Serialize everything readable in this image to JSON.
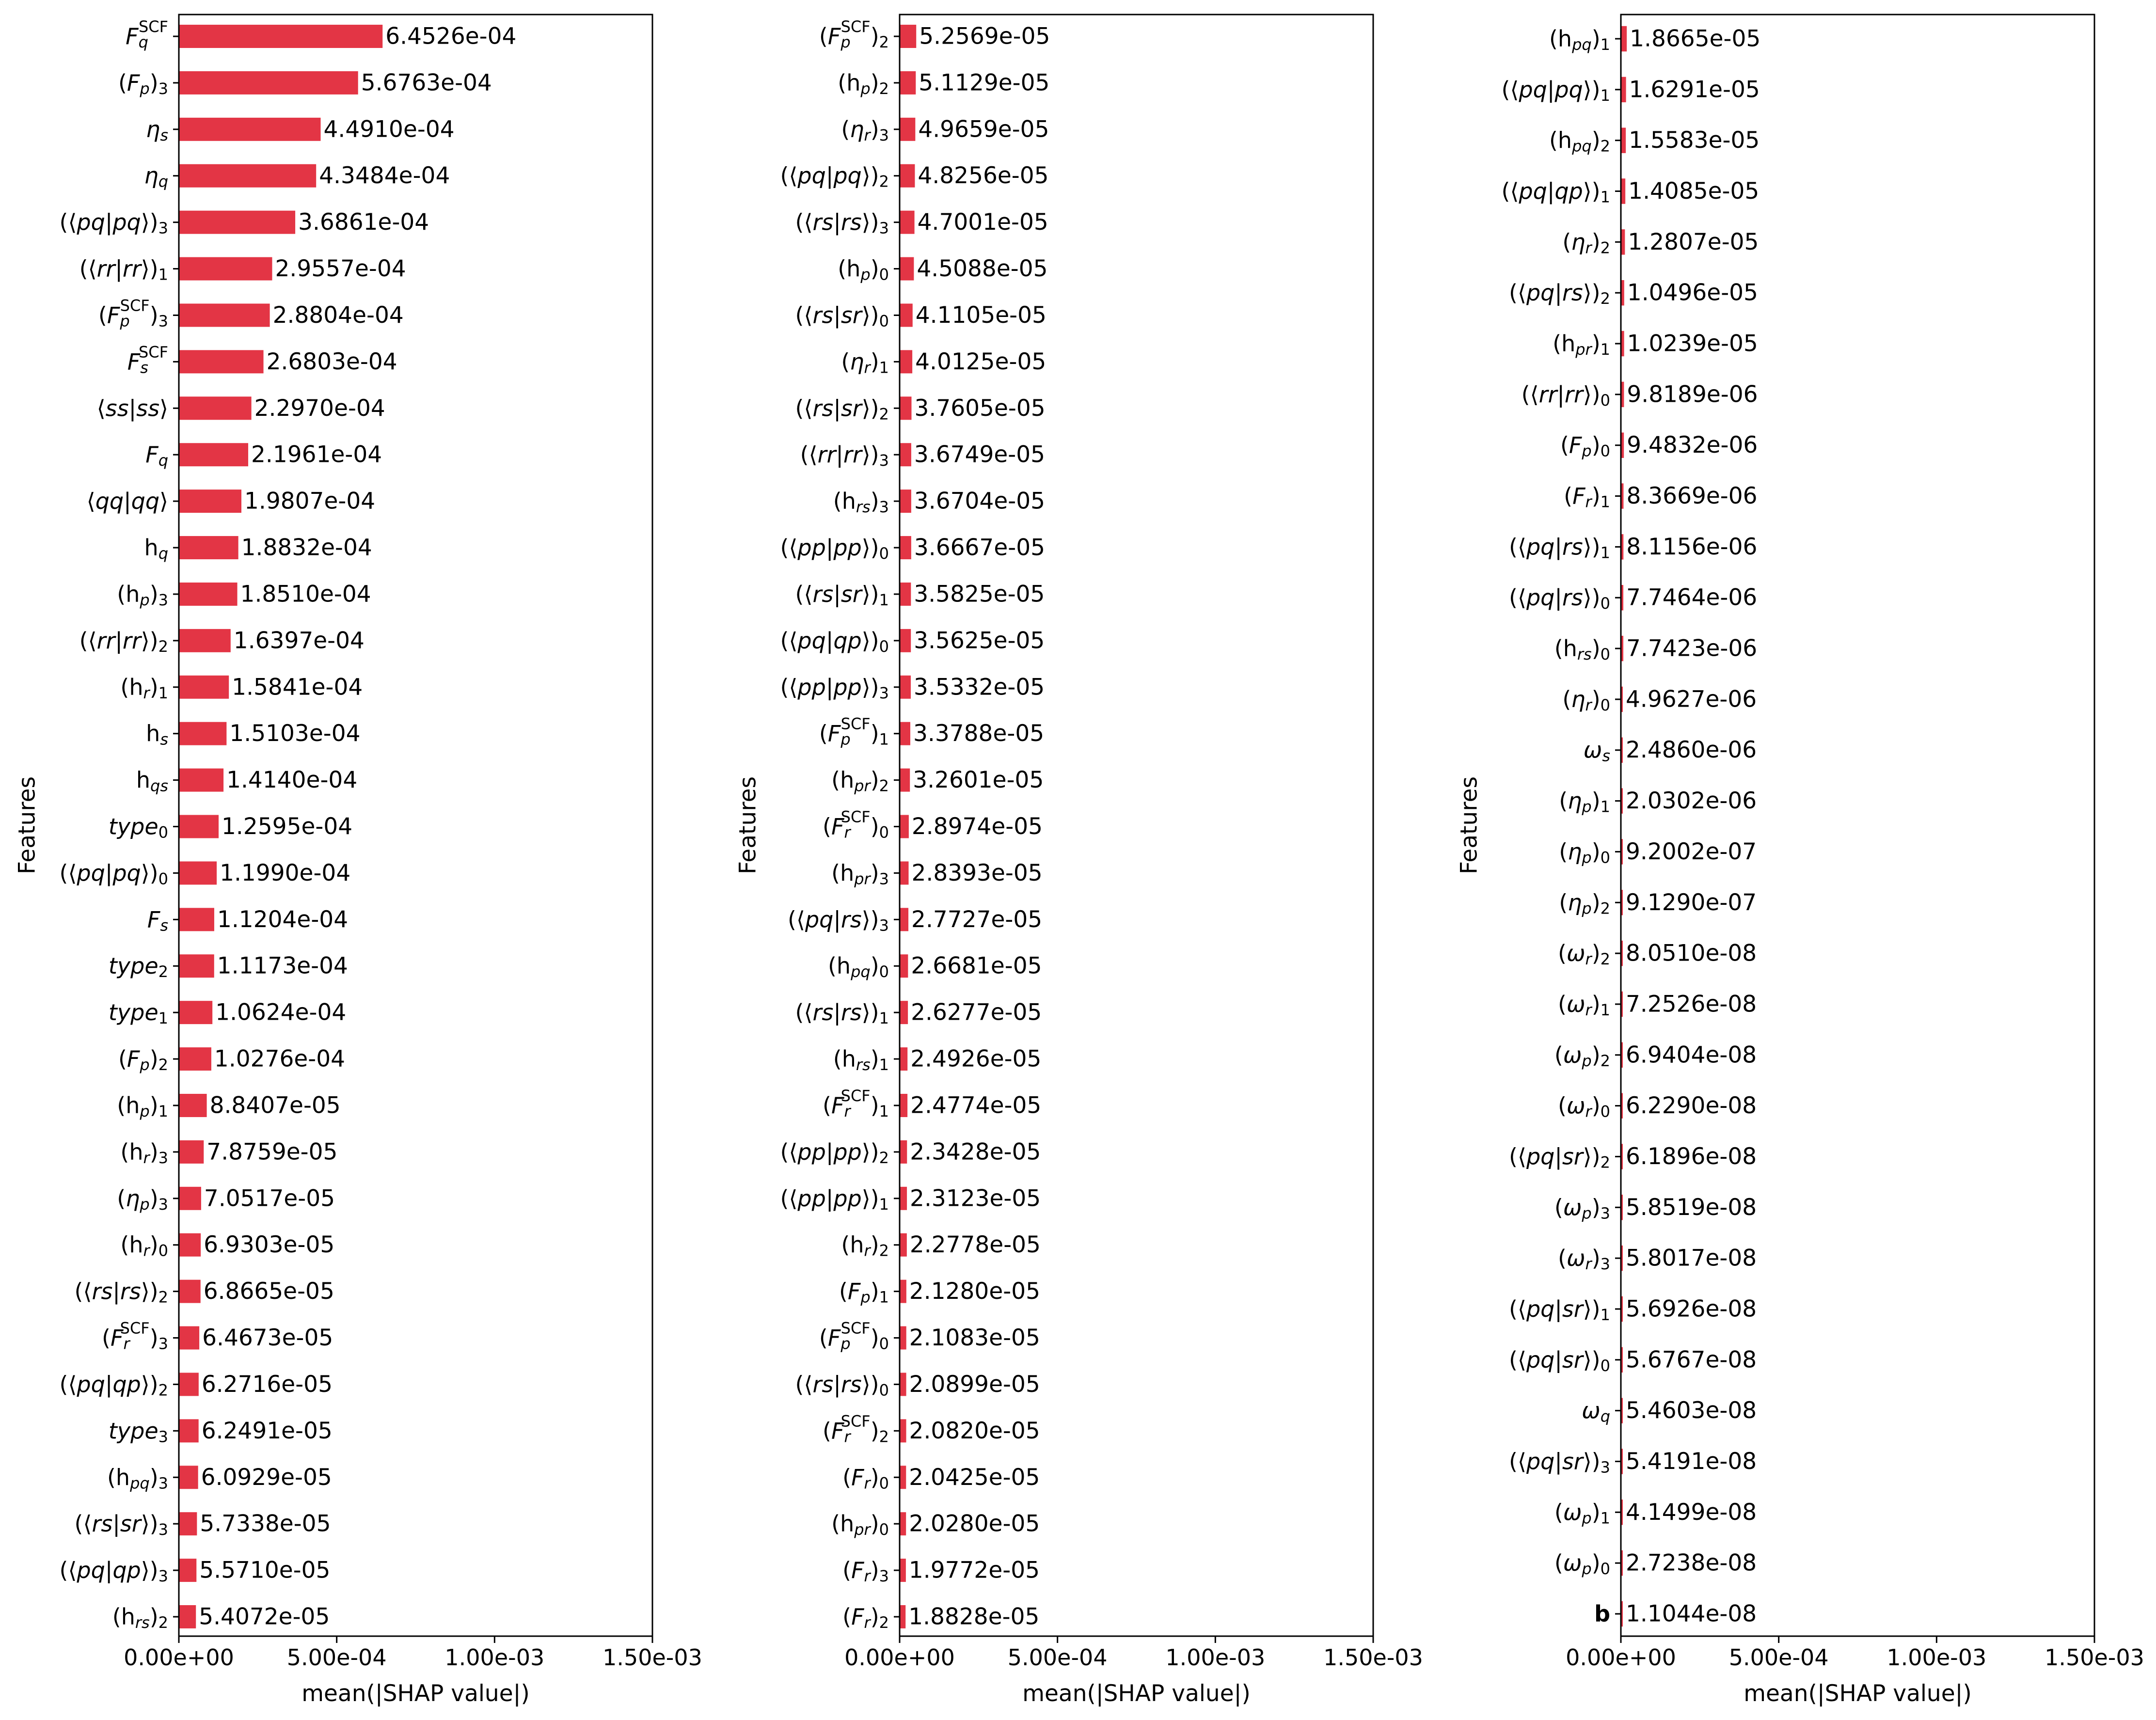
{
  "colors": {
    "bar": "#e33545",
    "axis": "#000000",
    "background": "#ffffff"
  },
  "chart_data": [
    {
      "type": "bar",
      "orientation": "horizontal",
      "xlabel": "mean(|SHAP value|)",
      "ylabel": "Features",
      "xlim": [
        0,
        0.0015
      ],
      "x_ticks": [
        "0.00e+00",
        "5.00e-04",
        "1.00e-03",
        "1.50e-03"
      ],
      "categories": [
        "F_q^SCF",
        "(F_p)_3",
        "η_s",
        "η_q",
        "(⟨pq|pq⟩)_3",
        "(⟨rr|rr⟩)_1",
        "(F_p^SCF)_3",
        "F_s^SCF",
        "⟨ss|ss⟩",
        "F_q",
        "⟨qq|qq⟩",
        "h_q",
        "(h_p)_3",
        "(⟨rr|rr⟩)_2",
        "(h_r)_1",
        "h_s",
        "h_qs",
        "type_0",
        "(⟨pq|pq⟩)_0",
        "F_s",
        "type_2",
        "type_1",
        "(F_p)_2",
        "(h_p)_1",
        "(h_r)_3",
        "(η_p)_3",
        "(h_r)_0",
        "(⟨rs|rs⟩)_2",
        "(F_r^SCF)_3",
        "(⟨pq|qp⟩)_2",
        "type_3",
        "(h_pq)_3",
        "(⟨rs|sr⟩)_3",
        "(⟨pq|qp⟩)_3",
        "(h_rs)_2"
      ],
      "values": [
        0.00064526,
        0.00056763,
        0.0004491,
        0.00043484,
        0.00036861,
        0.00029557,
        0.00028804,
        0.00026803,
        0.0002297,
        0.00021961,
        0.00019807,
        0.00018832,
        0.0001851,
        0.00016397,
        0.00015841,
        0.00015103,
        0.0001414,
        0.00012595,
        0.0001199,
        0.00011204,
        0.00011173,
        0.00010624,
        0.00010276,
        8.8407e-05,
        7.8759e-05,
        7.0517e-05,
        6.9303e-05,
        6.8665e-05,
        6.4673e-05,
        6.2716e-05,
        6.2491e-05,
        6.0929e-05,
        5.7338e-05,
        5.571e-05,
        5.4072e-05
      ],
      "value_labels": [
        "6.4526e-04",
        "5.6763e-04",
        "4.4910e-04",
        "4.3484e-04",
        "3.6861e-04",
        "2.9557e-04",
        "2.8804e-04",
        "2.6803e-04",
        "2.2970e-04",
        "2.1961e-04",
        "1.9807e-04",
        "1.8832e-04",
        "1.8510e-04",
        "1.6397e-04",
        "1.5841e-04",
        "1.5103e-04",
        "1.4140e-04",
        "1.2595e-04",
        "1.1990e-04",
        "1.1204e-04",
        "1.1173e-04",
        "1.0624e-04",
        "1.0276e-04",
        "8.8407e-05",
        "7.8759e-05",
        "7.0517e-05",
        "6.9303e-05",
        "6.8665e-05",
        "6.4673e-05",
        "6.2716e-05",
        "6.2491e-05",
        "6.0929e-05",
        "5.7338e-05",
        "5.5710e-05",
        "5.4072e-05"
      ]
    },
    {
      "type": "bar",
      "orientation": "horizontal",
      "xlabel": "mean(|SHAP value|)",
      "ylabel": "Features",
      "xlim": [
        0,
        0.0015
      ],
      "x_ticks": [
        "0.00e+00",
        "5.00e-04",
        "1.00e-03",
        "1.50e-03"
      ],
      "categories": [
        "(F_p^SCF)_2",
        "(h_p)_2",
        "(η_r)_3",
        "(⟨pq|pq⟩)_2",
        "(⟨rs|rs⟩)_3",
        "(h_p)_0",
        "(⟨rs|sr⟩)_0",
        "(η_r)_1",
        "(⟨rs|sr⟩)_2",
        "(⟨rr|rr⟩)_3",
        "(h_rs)_3",
        "(⟨pp|pp⟩)_0",
        "(⟨rs|sr⟩)_1",
        "(⟨pq|qp⟩)_0",
        "(⟨pp|pp⟩)_3",
        "(F_p^SCF)_1",
        "(h_pr)_2",
        "(F_r^SCF)_0",
        "(h_pr)_3",
        "(⟨pq|rs⟩)_3",
        "(h_pq)_0",
        "(⟨rs|rs⟩)_1",
        "(h_rs)_1",
        "(F_r^SCF)_1",
        "(⟨pp|pp⟩)_2",
        "(⟨pp|pp⟩)_1",
        "(h_r)_2",
        "(F_p)_1",
        "(F_p^SCF)_0",
        "(⟨rs|rs⟩)_0",
        "(F_r^SCF)_2",
        "(F_r)_0",
        "(h_pr)_0",
        "(F_r)_3",
        "(F_r)_2"
      ],
      "values": [
        5.2569e-05,
        5.1129e-05,
        4.9659e-05,
        4.8256e-05,
        4.7001e-05,
        4.5088e-05,
        4.1105e-05,
        4.0125e-05,
        3.7605e-05,
        3.6749e-05,
        3.6704e-05,
        3.6667e-05,
        3.5825e-05,
        3.5625e-05,
        3.5332e-05,
        3.3788e-05,
        3.2601e-05,
        2.8974e-05,
        2.8393e-05,
        2.7727e-05,
        2.6681e-05,
        2.6277e-05,
        2.4926e-05,
        2.4774e-05,
        2.3428e-05,
        2.3123e-05,
        2.2778e-05,
        2.128e-05,
        2.1083e-05,
        2.0899e-05,
        2.082e-05,
        2.0425e-05,
        2.028e-05,
        1.9772e-05,
        1.8828e-05
      ],
      "value_labels": [
        "5.2569e-05",
        "5.1129e-05",
        "4.9659e-05",
        "4.8256e-05",
        "4.7001e-05",
        "4.5088e-05",
        "4.1105e-05",
        "4.0125e-05",
        "3.7605e-05",
        "3.6749e-05",
        "3.6704e-05",
        "3.6667e-05",
        "3.5825e-05",
        "3.5625e-05",
        "3.5332e-05",
        "3.3788e-05",
        "3.2601e-05",
        "2.8974e-05",
        "2.8393e-05",
        "2.7727e-05",
        "2.6681e-05",
        "2.6277e-05",
        "2.4926e-05",
        "2.4774e-05",
        "2.3428e-05",
        "2.3123e-05",
        "2.2778e-05",
        "2.1280e-05",
        "2.1083e-05",
        "2.0899e-05",
        "2.0820e-05",
        "2.0425e-05",
        "2.0280e-05",
        "1.9772e-05",
        "1.8828e-05"
      ]
    },
    {
      "type": "bar",
      "orientation": "horizontal",
      "xlabel": "mean(|SHAP value|)",
      "ylabel": "Features",
      "xlim": [
        0,
        0.0015
      ],
      "x_ticks": [
        "0.00e+00",
        "5.00e-04",
        "1.00e-03",
        "1.50e-03"
      ],
      "categories": [
        "(h_pq)_1",
        "(⟨pq|pq⟩)_1",
        "(h_pq)_2",
        "(⟨pq|qp⟩)_1",
        "(η_r)_2",
        "(⟨pq|rs⟩)_2",
        "(h_pr)_1",
        "(⟨rr|rr⟩)_0",
        "(F_p)_0",
        "(F_r)_1",
        "(⟨pq|rs⟩)_1",
        "(⟨pq|rs⟩)_0",
        "(h_rs)_0",
        "(η_r)_0",
        "ω_s",
        "(η_p)_1",
        "(η_p)_0",
        "(η_p)_2",
        "(ω_r)_2",
        "(ω_r)_1",
        "(ω_p)_2",
        "(ω_r)_0",
        "(⟨pq|sr⟩)_2",
        "(ω_p)_3",
        "(ω_r)_3",
        "(⟨pq|sr⟩)_1",
        "(⟨pq|sr⟩)_0",
        "ω_q",
        "(⟨pq|sr⟩)_3",
        "(ω_p)_1",
        "(ω_p)_0",
        "b"
      ],
      "values": [
        1.8665e-05,
        1.6291e-05,
        1.5583e-05,
        1.4085e-05,
        1.2807e-05,
        1.0496e-05,
        1.0239e-05,
        9.8189e-06,
        9.4832e-06,
        8.3669e-06,
        8.1156e-06,
        7.7464e-06,
        7.7423e-06,
        4.9627e-06,
        2.486e-06,
        2.0302e-06,
        9.2002e-07,
        9.129e-07,
        8.051e-08,
        7.2526e-08,
        6.9404e-08,
        6.229e-08,
        6.1896e-08,
        5.8519e-08,
        5.8017e-08,
        5.6926e-08,
        5.6767e-08,
        5.4603e-08,
        5.4191e-08,
        4.1499e-08,
        2.7238e-08,
        1.1044e-08
      ],
      "value_labels": [
        "1.8665e-05",
        "1.6291e-05",
        "1.5583e-05",
        "1.4085e-05",
        "1.2807e-05",
        "1.0496e-05",
        "1.0239e-05",
        "9.8189e-06",
        "9.4832e-06",
        "8.3669e-06",
        "8.1156e-06",
        "7.7464e-06",
        "7.7423e-06",
        "4.9627e-06",
        "2.4860e-06",
        "2.0302e-06",
        "9.2002e-07",
        "9.1290e-07",
        "8.0510e-08",
        "7.2526e-08",
        "6.9404e-08",
        "6.2290e-08",
        "6.1896e-08",
        "5.8519e-08",
        "5.8017e-08",
        "5.6926e-08",
        "5.6767e-08",
        "5.4603e-08",
        "5.4191e-08",
        "4.1499e-08",
        "2.7238e-08",
        "1.1044e-08"
      ]
    }
  ]
}
